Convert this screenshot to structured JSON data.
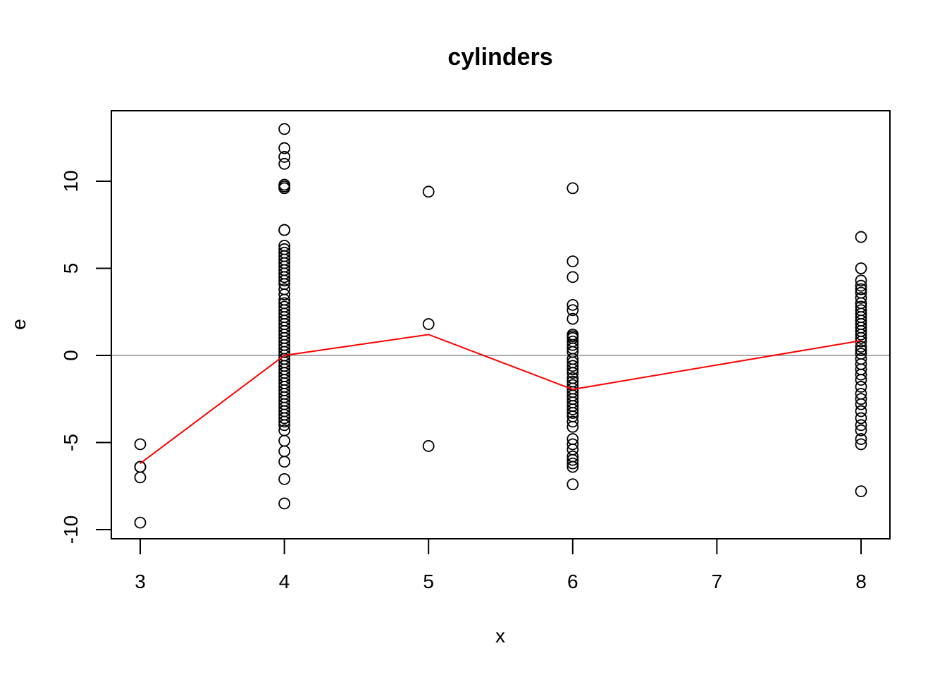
{
  "chart_data": {
    "type": "scatter",
    "title": "cylinders",
    "xlabel": "x",
    "ylabel": "e",
    "xlim": [
      2.8,
      8.2
    ],
    "ylim": [
      -10.5,
      13.9
    ],
    "x_ticks": [
      "3",
      "4",
      "5",
      "6",
      "7",
      "8"
    ],
    "y_ticks": [
      "-10",
      "-5",
      "0",
      "5",
      "10"
    ],
    "reference_line": {
      "y": 0,
      "color": "#aaaaaa"
    },
    "smooth_line": {
      "color": "#ff0000",
      "x": [
        3,
        4,
        5,
        6,
        8
      ],
      "y": [
        -6.2,
        0.0,
        1.2,
        -1.95,
        0.85
      ]
    },
    "points": [
      {
        "x": 3,
        "values": [
          -5.1,
          -6.4,
          -6.4,
          -7.0,
          -9.6
        ]
      },
      {
        "x": 4,
        "values": [
          13.0,
          11.9,
          11.4,
          11.0,
          9.8,
          9.7,
          9.6,
          7.2,
          7.2,
          6.3,
          6.1,
          5.9,
          5.7,
          5.5,
          5.3,
          5.1,
          4.9,
          4.7,
          4.5,
          4.3,
          4.1,
          3.8,
          3.5,
          3.2,
          3.0,
          2.8,
          2.6,
          2.4,
          2.2,
          2.0,
          1.8,
          1.6,
          1.4,
          1.2,
          1.0,
          0.8,
          0.6,
          0.4,
          0.2,
          0.0,
          -0.2,
          -0.4,
          -0.6,
          -0.8,
          -1.0,
          -1.2,
          -1.4,
          -1.6,
          -1.8,
          -2.0,
          -2.2,
          -2.4,
          -2.6,
          -2.8,
          -3.0,
          -3.2,
          -3.4,
          -3.6,
          -3.8,
          -4.0,
          -4.3,
          -4.9,
          -5.5,
          -6.1,
          -7.1,
          -8.5
        ]
      },
      {
        "x": 5,
        "values": [
          9.4,
          1.8,
          -5.2
        ]
      },
      {
        "x": 6,
        "values": [
          9.6,
          5.4,
          4.5,
          2.9,
          2.6,
          2.1,
          1.2,
          1.1,
          1.0,
          0.8,
          0.6,
          0.4,
          0.2,
          -0.2,
          -0.4,
          -0.6,
          -0.8,
          -1.0,
          -1.3,
          -1.5,
          -1.7,
          -1.9,
          -2.1,
          -2.3,
          -2.5,
          -2.7,
          -2.9,
          -3.1,
          -3.3,
          -3.5,
          -3.8,
          -4.1,
          -4.8,
          -5.1,
          -5.4,
          -5.8,
          -6.0,
          -6.2,
          -6.4,
          -7.4
        ]
      },
      {
        "x": 8,
        "values": [
          6.8,
          5.0,
          4.3,
          4.0,
          3.8,
          3.6,
          3.3,
          3.0,
          2.8,
          2.6,
          2.4,
          2.2,
          2.0,
          1.8,
          1.6,
          1.4,
          1.2,
          1.0,
          0.8,
          0.5,
          0.3,
          0.1,
          -0.2,
          -0.5,
          -0.8,
          -1.1,
          -1.4,
          -1.8,
          -2.2,
          -2.5,
          -2.8,
          -3.2,
          -3.6,
          -4.0,
          -4.3,
          -4.8,
          -5.1,
          -7.8
        ]
      }
    ]
  }
}
